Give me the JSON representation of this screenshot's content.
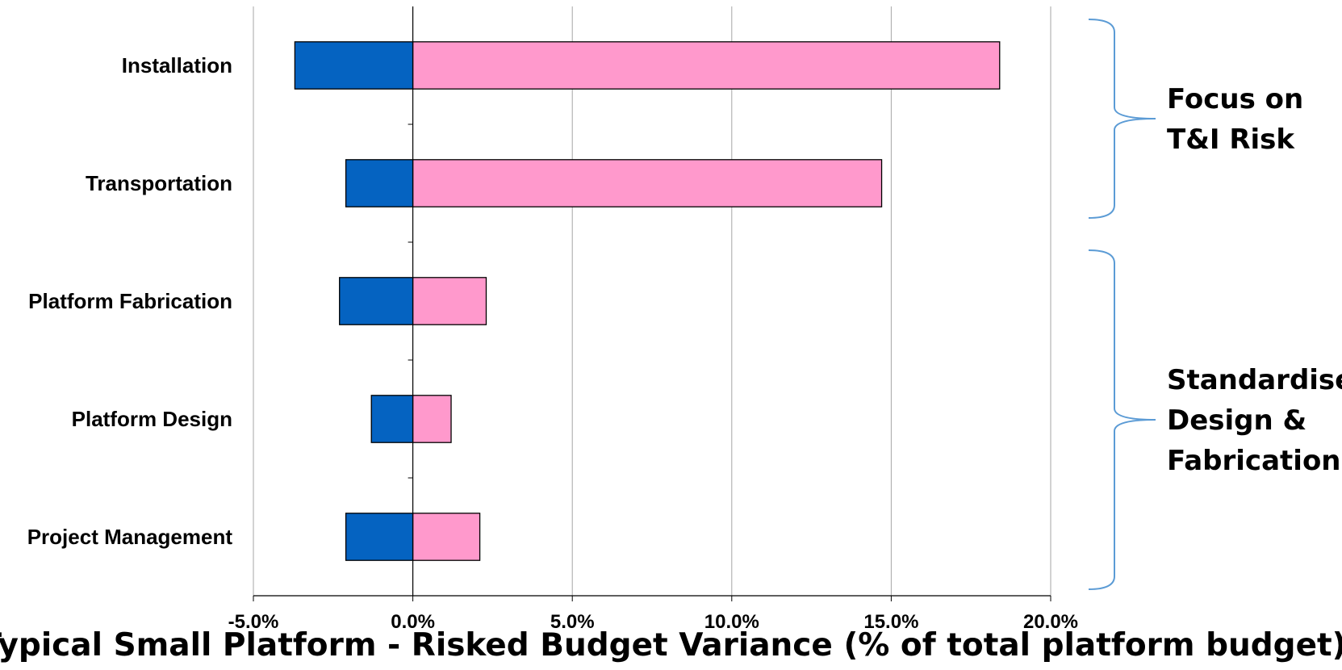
{
  "chart_data": {
    "type": "bar",
    "orientation": "horizontal",
    "subtype": "tornado",
    "xlabel": "Typical Small Platform - Risked Budget Variance (% of total platform budget)",
    "ylabel": "",
    "xlim": [
      -5.0,
      20.0
    ],
    "x_ticks": [
      -5.0,
      0.0,
      5.0,
      10.0,
      15.0,
      20.0
    ],
    "x_tick_labels": [
      "-5.0%",
      "0.0%",
      "5.0%",
      "10.0%",
      "15.0%",
      "20.0%"
    ],
    "grid": "vertical",
    "categories": [
      "Installation",
      "Transportation",
      "Platform Fabrication",
      "Platform Design",
      "Project Management"
    ],
    "series": [
      {
        "values": [
          -3.7,
          -2.1,
          -2.3,
          -1.3,
          -2.1
        ],
        "color": "#0563C1"
      },
      {
        "values": [
          18.4,
          14.7,
          2.3,
          1.2,
          2.1
        ],
        "color": "#FF99CC"
      }
    ],
    "annotations": [
      {
        "lines": [
          "Focus on",
          "T&I Risk"
        ],
        "spans": [
          "Installation",
          "Transportation"
        ],
        "bracket_color": "#5B9BD5"
      },
      {
        "lines": [
          "Standardise",
          "Design &",
          "Fabrication"
        ],
        "spans": [
          "Platform Fabrication",
          "Platform Design",
          "Project Management"
        ],
        "bracket_color": "#5B9BD5"
      }
    ]
  }
}
